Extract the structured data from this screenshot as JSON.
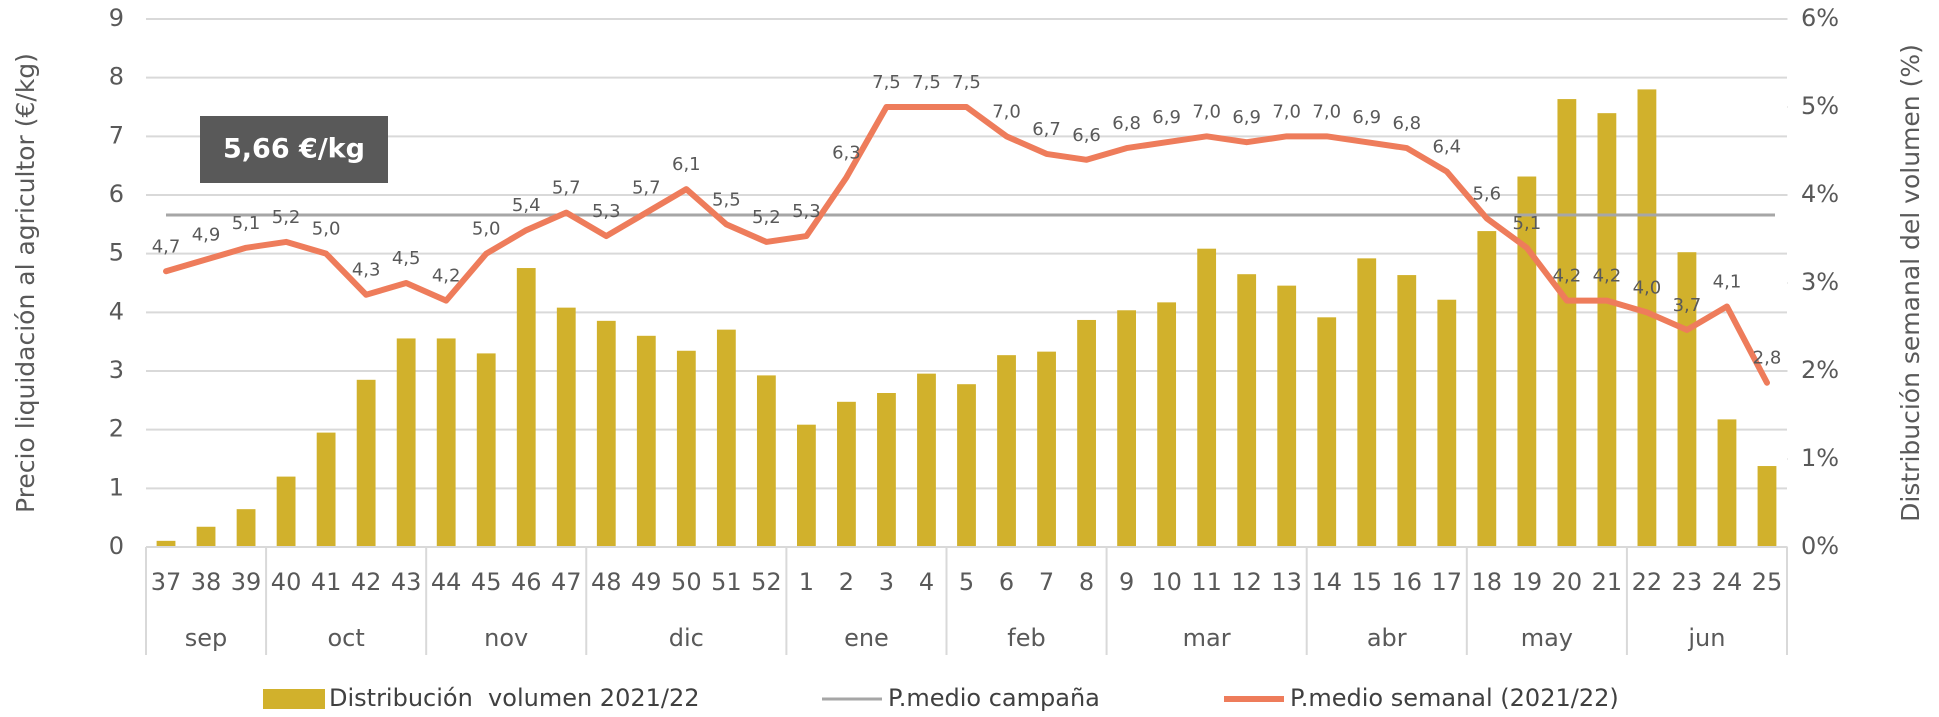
{
  "chart_data": {
    "type": "bar-line",
    "categories": [
      "37",
      "38",
      "39",
      "40",
      "41",
      "42",
      "43",
      "44",
      "45",
      "46",
      "47",
      "48",
      "49",
      "50",
      "51",
      "52",
      "1",
      "2",
      "3",
      "4",
      "5",
      "6",
      "7",
      "8",
      "9",
      "10",
      "11",
      "12",
      "13",
      "14",
      "15",
      "16",
      "17",
      "18",
      "19",
      "20",
      "21",
      "22",
      "23",
      "24",
      "25"
    ],
    "groups": [
      {
        "name": "sep",
        "count": 3
      },
      {
        "name": "oct",
        "count": 4
      },
      {
        "name": "nov",
        "count": 4
      },
      {
        "name": "dic",
        "count": 5
      },
      {
        "name": "ene",
        "count": 4
      },
      {
        "name": "feb",
        "count": 4
      },
      {
        "name": "mar",
        "count": 5
      },
      {
        "name": "abr",
        "count": 4
      },
      {
        "name": "may",
        "count": 4
      },
      {
        "name": "jun",
        "count": 4
      }
    ],
    "ylabel": "Precio liquidación al agricultor (€/kg)",
    "y2label": "Distribución semanal del volumen (%)",
    "ylim": [
      0,
      9
    ],
    "yticks": [
      0,
      1,
      2,
      3,
      4,
      5,
      6,
      7,
      8,
      9
    ],
    "y2lim": [
      0,
      6
    ],
    "y2ticks": [
      {
        "value": 0,
        "label": "0%"
      },
      {
        "value": 1,
        "label": "1%"
      },
      {
        "value": 2,
        "label": "2%"
      },
      {
        "value": 3,
        "label": "3%"
      },
      {
        "value": 4,
        "label": "4%"
      },
      {
        "value": 5,
        "label": "5%"
      },
      {
        "value": 6,
        "label": "6%"
      }
    ],
    "grid": true,
    "legend": "bottom",
    "series": [
      {
        "name": "Distribución  volumen 2021/22",
        "type": "bar",
        "axis": "y2",
        "color": "#d1b12c",
        "values": [
          0.07,
          0.23,
          0.43,
          0.8,
          1.3,
          1.9,
          2.37,
          2.37,
          2.2,
          3.17,
          2.72,
          2.57,
          2.4,
          2.23,
          2.47,
          1.95,
          1.39,
          1.65,
          1.75,
          1.97,
          1.85,
          2.18,
          2.22,
          2.58,
          2.69,
          2.78,
          3.39,
          3.1,
          2.97,
          2.61,
          3.28,
          3.09,
          2.81,
          3.59,
          4.21,
          5.09,
          4.93,
          5.2,
          3.35,
          1.45,
          0.92
        ]
      },
      {
        "name": "P.medio campaña",
        "type": "hline",
        "color": "#a6a6a6",
        "value": 5.66,
        "value_label": "5,66 €/kg"
      },
      {
        "name": "P.medio semanal (2021/22)",
        "type": "line",
        "color": "#ee7c5b",
        "values": [
          4.7,
          4.9,
          5.1,
          5.2,
          5.0,
          4.3,
          4.5,
          4.2,
          5.0,
          5.4,
          5.7,
          5.3,
          5.7,
          6.1,
          5.5,
          5.2,
          5.3,
          6.3,
          7.5,
          7.5,
          7.5,
          7.0,
          6.7,
          6.6,
          6.8,
          6.9,
          7.0,
          6.9,
          7.0,
          7.0,
          6.9,
          6.8,
          6.4,
          5.6,
          5.1,
          4.2,
          4.2,
          4.0,
          3.7,
          4.1,
          2.8
        ],
        "value_labels": [
          "4,7",
          "4,9",
          "5,1",
          "5,2",
          "5,0",
          "4,3",
          "4,5",
          "4,2",
          "5,0",
          "5,4",
          "5,7",
          "5,3",
          "5,7",
          "6,1",
          "5,5",
          "5,2",
          "5,3",
          "6,3",
          "7,5",
          "7,5",
          "7,5",
          "7,0",
          "6,7",
          "6,6",
          "6,8",
          "6,9",
          "7,0",
          "6,9",
          "7,0",
          "7,0",
          "6,9",
          "6,8",
          "6,4",
          "5,6",
          "5,1",
          "4,2",
          "4,2",
          "4,0",
          "3,7",
          "4,1",
          "2,8"
        ]
      }
    ]
  }
}
